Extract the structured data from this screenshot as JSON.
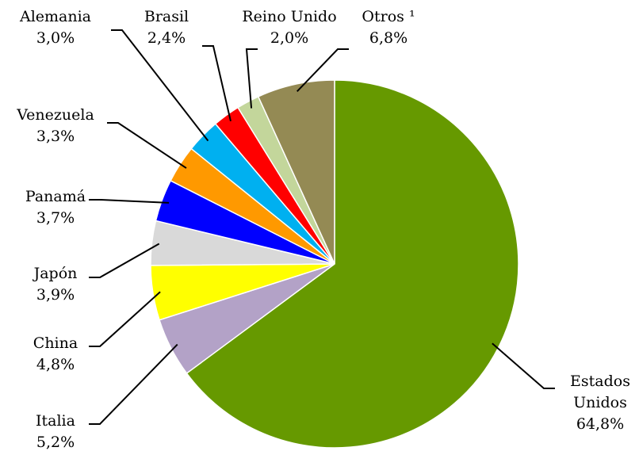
{
  "chart_data": {
    "type": "pie",
    "categories": [
      "Estados Unidos",
      "Italia",
      "China",
      "Japón",
      "Panamá",
      "Venezuela",
      "Alemania",
      "Brasil",
      "Reino Unido",
      "Otros ¹"
    ],
    "values": [
      64.8,
      5.2,
      4.8,
      3.9,
      3.7,
      3.3,
      3.0,
      2.4,
      2.0,
      6.8
    ],
    "value_labels": [
      "64,8%",
      "5,2%",
      "4,8%",
      "3,9%",
      "3,7%",
      "3,3%",
      "3,0%",
      "2,4%",
      "2,0%",
      "6,8%"
    ],
    "colors": [
      "#669900",
      "#b3a2c7",
      "#ffff00",
      "#d9d9d9",
      "#0000ff",
      "#ff9900",
      "#00b0f0",
      "#ff0000",
      "#c3d69b",
      "#948a54"
    ]
  }
}
